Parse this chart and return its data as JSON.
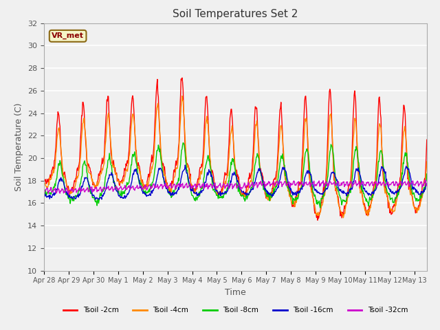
{
  "title": "Soil Temperatures Set 2",
  "xlabel": "Time",
  "ylabel": "Soil Temperature (C)",
  "ylim": [
    10,
    32
  ],
  "yticks": [
    10,
    12,
    14,
    16,
    18,
    20,
    22,
    24,
    26,
    28,
    30,
    32
  ],
  "annotation": "VR_met",
  "bg_color": "#f0f0f0",
  "plot_bg": "#f0f0f0",
  "grid_color": "white",
  "colors": {
    "Tsoil -2cm": "#ff0000",
    "Tsoil -4cm": "#ff8800",
    "Tsoil -8cm": "#00cc00",
    "Tsoil -16cm": "#0000cc",
    "Tsoil -32cm": "#cc00cc"
  },
  "x_tick_labels": [
    "Apr 28",
    "Apr 29",
    "Apr 30",
    "May 1",
    "May 2",
    "May 3",
    "May 4",
    "May 5",
    "May 6",
    "May 7",
    "May 8",
    "May 9",
    "May 10",
    "May 11",
    "May 12",
    "May 13"
  ],
  "n_days": 15.5,
  "points_per_day": 48
}
